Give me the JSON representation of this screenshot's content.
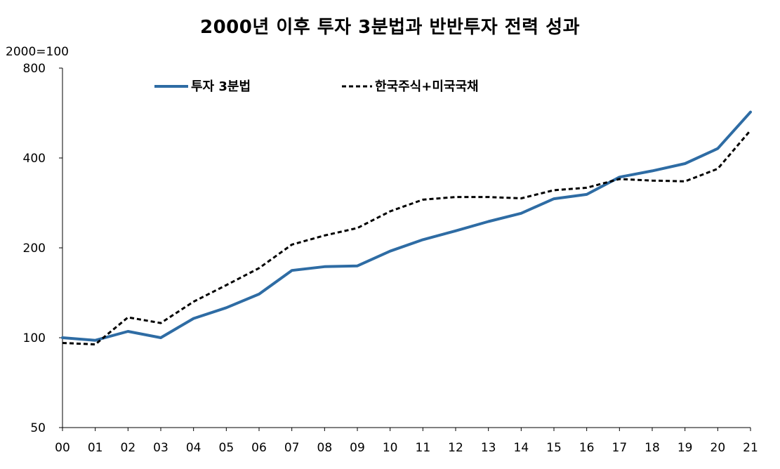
{
  "chart_data": {
    "type": "line",
    "title": "2000년 이후 투자 3분법과 반반투자 전력 성과",
    "unit_label": "2000=100",
    "xlabel": "",
    "ylabel": "",
    "y_scale": "log",
    "ylim": [
      50,
      800
    ],
    "y_ticks": [
      50,
      100,
      200,
      400,
      800
    ],
    "grid": false,
    "legend_position": "top",
    "categories": [
      "00",
      "01",
      "02",
      "03",
      "04",
      "05",
      "06",
      "07",
      "08",
      "09",
      "10",
      "11",
      "12",
      "13",
      "14",
      "15",
      "16",
      "17",
      "18",
      "19",
      "20",
      "21"
    ],
    "series": [
      {
        "name": "투자 3분법",
        "style": "solid",
        "color": "#2e6ca4",
        "values": [
          100,
          98,
          105,
          100,
          116,
          126,
          140,
          168,
          173,
          174,
          195,
          213,
          228,
          245,
          261,
          292,
          302,
          345,
          362,
          383,
          430,
          570
        ]
      },
      {
        "name": "한국주식+미국국채",
        "style": "dashed",
        "color": "#000000",
        "values": [
          96,
          95,
          117,
          112,
          132,
          150,
          171,
          205,
          220,
          233,
          265,
          290,
          296,
          296,
          293,
          312,
          318,
          340,
          336,
          334,
          368,
          495
        ]
      }
    ]
  }
}
